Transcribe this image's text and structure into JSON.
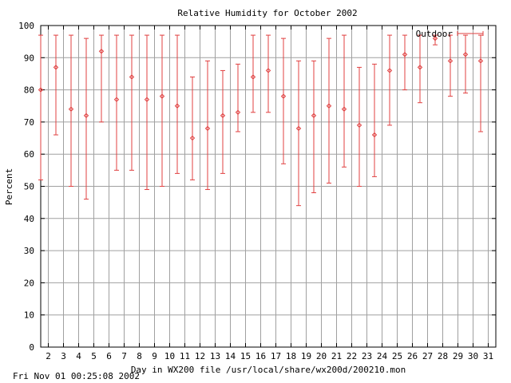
{
  "footer_timestamp": "Fri Nov 01 00:25:08 2002",
  "colors": {
    "series": "#e04040",
    "grid": "#a0a0a0",
    "axis": "#000000"
  },
  "chart_data": {
    "type": "errorbar",
    "title": "Relative Humidity for October 2002",
    "xlabel": "Day in WX200 file /usr/local/share/wx200d/200210.mon",
    "ylabel": "Percent",
    "xlim": [
      1.5,
      31.5
    ],
    "ylim": [
      0,
      100
    ],
    "x_ticks": [
      2,
      3,
      4,
      5,
      6,
      7,
      8,
      9,
      10,
      11,
      12,
      13,
      14,
      15,
      16,
      17,
      18,
      19,
      20,
      21,
      22,
      23,
      24,
      25,
      26,
      27,
      28,
      29,
      30,
      31
    ],
    "y_ticks": [
      0,
      10,
      20,
      30,
      40,
      50,
      60,
      70,
      80,
      90,
      100
    ],
    "grid": true,
    "legend_position": "top-right",
    "series": [
      {
        "name": "Outdoor",
        "points": [
          {
            "x": 1.5,
            "y": 80,
            "low": 52,
            "high": 97
          },
          {
            "x": 2.5,
            "y": 87,
            "low": 66,
            "high": 97
          },
          {
            "x": 3.5,
            "y": 74,
            "low": 50,
            "high": 97
          },
          {
            "x": 4.5,
            "y": 72,
            "low": 46,
            "high": 96
          },
          {
            "x": 5.5,
            "y": 92,
            "low": 70,
            "high": 97
          },
          {
            "x": 6.5,
            "y": 77,
            "low": 55,
            "high": 97
          },
          {
            "x": 7.5,
            "y": 84,
            "low": 55,
            "high": 97
          },
          {
            "x": 8.5,
            "y": 77,
            "low": 49,
            "high": 97
          },
          {
            "x": 9.5,
            "y": 78,
            "low": 50,
            "high": 97
          },
          {
            "x": 10.5,
            "y": 75,
            "low": 54,
            "high": 97
          },
          {
            "x": 11.5,
            "y": 65,
            "low": 52,
            "high": 84
          },
          {
            "x": 12.5,
            "y": 68,
            "low": 49,
            "high": 89
          },
          {
            "x": 13.5,
            "y": 72,
            "low": 54,
            "high": 86
          },
          {
            "x": 14.5,
            "y": 73,
            "low": 67,
            "high": 88
          },
          {
            "x": 15.5,
            "y": 84,
            "low": 73,
            "high": 97
          },
          {
            "x": 16.5,
            "y": 86,
            "low": 73,
            "high": 97
          },
          {
            "x": 17.5,
            "y": 78,
            "low": 57,
            "high": 96
          },
          {
            "x": 18.5,
            "y": 68,
            "low": 44,
            "high": 89
          },
          {
            "x": 19.5,
            "y": 72,
            "low": 48,
            "high": 89
          },
          {
            "x": 20.5,
            "y": 75,
            "low": 51,
            "high": 96
          },
          {
            "x": 21.5,
            "y": 74,
            "low": 56,
            "high": 97
          },
          {
            "x": 22.5,
            "y": 69,
            "low": 50,
            "high": 87
          },
          {
            "x": 23.5,
            "y": 66,
            "low": 53,
            "high": 88
          },
          {
            "x": 24.5,
            "y": 86,
            "low": 69,
            "high": 97
          },
          {
            "x": 25.5,
            "y": 91,
            "low": 80,
            "high": 97
          },
          {
            "x": 26.5,
            "y": 87,
            "low": 76,
            "high": 97
          },
          {
            "x": 27.5,
            "y": 96,
            "low": 94,
            "high": 97
          },
          {
            "x": 28.5,
            "y": 89,
            "low": 78,
            "high": 97
          },
          {
            "x": 29.5,
            "y": 91,
            "low": 79,
            "high": 97
          },
          {
            "x": 30.5,
            "y": 89,
            "low": 67,
            "high": 97
          }
        ]
      }
    ]
  }
}
